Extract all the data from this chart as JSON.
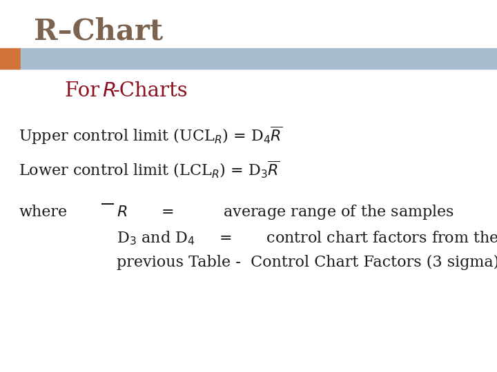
{
  "title": "R–Chart",
  "title_color": "#7B6350",
  "title_fontsize": 30,
  "bg_color": "#FFFFFF",
  "header_bar_color": "#A8BDD0",
  "header_bar_orange": "#D2733A",
  "subtitle_color": "#8B1020",
  "subtitle_fontsize": 21,
  "body_fontsize": 16,
  "body_color": "#1A1A1A",
  "ucl_text": "Upper control limit (UCL$_R$) = D$_4\\overline{R}$",
  "lcl_text": "Lower control limit (LCL$_R$) = D$_3\\overline{R}$",
  "where_text": "where",
  "r_line": "$R$       =          average range of the samples",
  "d34_line": "D$_3$ and D$_4$     =       control chart factors from the",
  "prev_line": "previous Table -  Control Chart Factors (3 sigma)"
}
